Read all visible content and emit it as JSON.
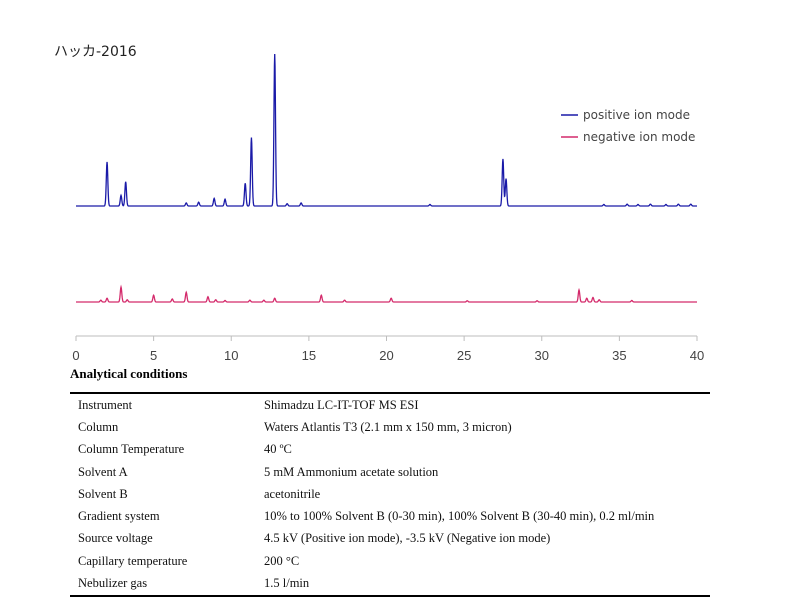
{
  "title": "ハッカ-2016",
  "chart_data": {
    "type": "line",
    "x_ticks": [
      0,
      5,
      10,
      15,
      20,
      25,
      30,
      35,
      40
    ],
    "xlim": [
      0,
      40
    ],
    "grid": false,
    "legend_position": "top-right",
    "series": [
      {
        "name": "positive ion mode",
        "color": "#1a1aa8",
        "baseline": 0.0,
        "peaks": [
          {
            "x": 2.0,
            "y": 0.29
          },
          {
            "x": 2.9,
            "y": 0.07
          },
          {
            "x": 3.2,
            "y": 0.16
          },
          {
            "x": 7.1,
            "y": 0.02
          },
          {
            "x": 7.9,
            "y": 0.025
          },
          {
            "x": 8.9,
            "y": 0.05
          },
          {
            "x": 9.6,
            "y": 0.045
          },
          {
            "x": 10.9,
            "y": 0.15
          },
          {
            "x": 11.3,
            "y": 0.45
          },
          {
            "x": 12.8,
            "y": 1.0
          },
          {
            "x": 13.6,
            "y": 0.015
          },
          {
            "x": 14.5,
            "y": 0.02
          },
          {
            "x": 22.8,
            "y": 0.01
          },
          {
            "x": 27.5,
            "y": 0.31
          },
          {
            "x": 27.7,
            "y": 0.18
          },
          {
            "x": 34.0,
            "y": 0.01
          },
          {
            "x": 35.5,
            "y": 0.012
          },
          {
            "x": 36.2,
            "y": 0.01
          },
          {
            "x": 37.0,
            "y": 0.012
          },
          {
            "x": 38.0,
            "y": 0.01
          },
          {
            "x": 38.8,
            "y": 0.012
          },
          {
            "x": 39.6,
            "y": 0.012
          }
        ]
      },
      {
        "name": "negative ion mode",
        "color": "#d42a6b",
        "baseline": 0.0,
        "peaks": [
          {
            "x": 1.6,
            "y": 0.012
          },
          {
            "x": 2.0,
            "y": 0.025
          },
          {
            "x": 2.9,
            "y": 0.1
          },
          {
            "x": 3.3,
            "y": 0.015
          },
          {
            "x": 5.0,
            "y": 0.045
          },
          {
            "x": 6.2,
            "y": 0.02
          },
          {
            "x": 7.1,
            "y": 0.065
          },
          {
            "x": 8.5,
            "y": 0.035
          },
          {
            "x": 9.0,
            "y": 0.015
          },
          {
            "x": 9.6,
            "y": 0.01
          },
          {
            "x": 11.2,
            "y": 0.012
          },
          {
            "x": 12.1,
            "y": 0.012
          },
          {
            "x": 12.8,
            "y": 0.025
          },
          {
            "x": 15.8,
            "y": 0.045
          },
          {
            "x": 17.3,
            "y": 0.012
          },
          {
            "x": 20.3,
            "y": 0.025
          },
          {
            "x": 25.2,
            "y": 0.008
          },
          {
            "x": 29.7,
            "y": 0.008
          },
          {
            "x": 32.4,
            "y": 0.08
          },
          {
            "x": 32.9,
            "y": 0.025
          },
          {
            "x": 33.3,
            "y": 0.03
          },
          {
            "x": 33.7,
            "y": 0.015
          },
          {
            "x": 35.8,
            "y": 0.01
          }
        ]
      }
    ]
  },
  "conditions": {
    "heading": "Analytical conditions",
    "rows": [
      {
        "label": "Instrument",
        "value": "Shimadzu LC-IT-TOF MS ESI"
      },
      {
        "label": "Column",
        "value": "Waters Atlantis T3 (2.1 mm x 150 mm, 3 micron)"
      },
      {
        "label": "Column Temperature",
        "value": "40 ºC"
      },
      {
        "label": "Solvent A",
        "value": "5 mM Ammonium acetate solution"
      },
      {
        "label": "Solvent B",
        "value": "acetonitrile"
      },
      {
        "label": "Gradient system",
        "value": "10% to 100% Solvent B (0-30 min), 100% Solvent B (30-40 min), 0.2 ml/min"
      },
      {
        "label": "Source voltage",
        "value": "4.5 kV (Positive ion mode), -3.5 kV (Negative ion mode)"
      },
      {
        "label": "Capillary temperature",
        "value": "200 °C"
      },
      {
        "label": "Nebulizer gas",
        "value": "1.5 l/min"
      }
    ]
  }
}
